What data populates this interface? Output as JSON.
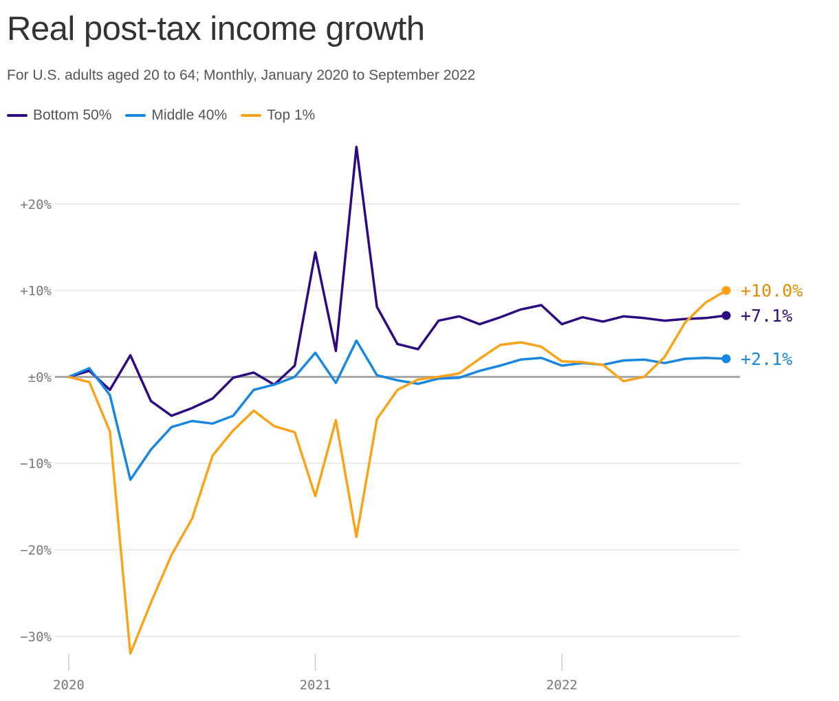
{
  "header": {
    "title": "Real post-tax income growth",
    "subtitle": "For U.S. adults aged 20 to 64; Monthly, January 2020 to September 2022"
  },
  "legend": [
    {
      "label": "Bottom 50%",
      "color": "#2e0a82"
    },
    {
      "label": "Middle 40%",
      "color": "#1787e0"
    },
    {
      "label": "Top 1%",
      "color": "#faa319"
    }
  ],
  "end_labels": [
    {
      "text": "+10.0%",
      "color": "#e38c00"
    },
    {
      "text": "+7.1%",
      "color": "#2e0a82"
    },
    {
      "text": "+2.1%",
      "color": "#1787e0"
    }
  ],
  "chart_data": {
    "type": "line",
    "title": "Real post-tax income growth",
    "subtitle": "For U.S. adults aged 20 to 64; Monthly, January 2020 to September 2022",
    "xlabel": "",
    "ylabel": "",
    "x": [
      "2020-01",
      "2020-02",
      "2020-03",
      "2020-04",
      "2020-05",
      "2020-06",
      "2020-07",
      "2020-08",
      "2020-09",
      "2020-10",
      "2020-11",
      "2020-12",
      "2021-01",
      "2021-02",
      "2021-03",
      "2021-04",
      "2021-05",
      "2021-06",
      "2021-07",
      "2021-08",
      "2021-09",
      "2021-10",
      "2021-11",
      "2021-12",
      "2022-01",
      "2022-02",
      "2022-03",
      "2022-04",
      "2022-05",
      "2022-06",
      "2022-07",
      "2022-08",
      "2022-09"
    ],
    "x_ticks": [
      "2020",
      "2021",
      "2022"
    ],
    "y_ticks": [
      {
        "value": 20,
        "label": "+20%"
      },
      {
        "value": 10,
        "label": "+10%"
      },
      {
        "value": 0,
        "label": "±0%"
      },
      {
        "value": -10,
        "label": "−10%"
      },
      {
        "value": -20,
        "label": "−20%"
      },
      {
        "value": -30,
        "label": "−30%"
      }
    ],
    "ylim": [
      -32,
      26.5
    ],
    "grid": true,
    "legend_position": "top-left",
    "series": [
      {
        "name": "Bottom 50%",
        "color": "#2e0a82",
        "end_label": "+7.1%",
        "values": [
          0,
          0.7,
          -1.5,
          2.5,
          -2.8,
          -4.5,
          -3.6,
          -2.5,
          -0.1,
          0.5,
          -0.9,
          1.3,
          14.4,
          3.0,
          26.6,
          8.1,
          3.8,
          3.2,
          6.5,
          7.0,
          6.1,
          6.9,
          7.8,
          8.3,
          6.1,
          6.9,
          6.4,
          7.0,
          6.8,
          6.5,
          6.7,
          6.8,
          7.1
        ]
      },
      {
        "name": "Middle 40%",
        "color": "#1787e0",
        "end_label": "+2.1%",
        "values": [
          0,
          1.0,
          -2.1,
          -11.9,
          -8.4,
          -5.8,
          -5.1,
          -5.4,
          -4.5,
          -1.5,
          -0.9,
          0.0,
          2.8,
          -0.7,
          4.2,
          0.2,
          -0.4,
          -0.8,
          -0.2,
          -0.1,
          0.7,
          1.3,
          2.0,
          2.2,
          1.3,
          1.6,
          1.4,
          1.9,
          2.0,
          1.6,
          2.1,
          2.2,
          2.1
        ]
      },
      {
        "name": "Top 1%",
        "color": "#faa319",
        "end_label": "+10.0%",
        "values": [
          0,
          -0.6,
          -6.3,
          -32.0,
          -26.1,
          -20.6,
          -16.4,
          -9.1,
          -6.2,
          -3.9,
          -5.7,
          -6.4,
          -13.8,
          -5.0,
          -18.5,
          -4.9,
          -1.5,
          -0.3,
          0.0,
          0.4,
          2.1,
          3.7,
          4.0,
          3.5,
          1.8,
          1.7,
          1.4,
          -0.5,
          0.0,
          2.3,
          6.3,
          8.6,
          10.0
        ]
      }
    ]
  }
}
